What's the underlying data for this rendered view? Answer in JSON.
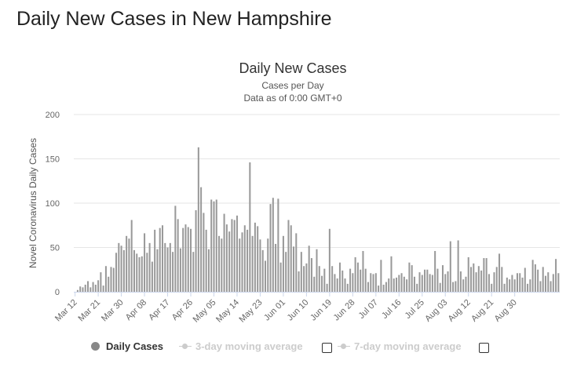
{
  "page": {
    "heading": "Daily New Cases in New Hampshire"
  },
  "chart_data": {
    "type": "bar",
    "title": "Daily New Cases",
    "subtitle_lines": [
      "Cases per Day",
      "Data as of 0:00 GMT+0"
    ],
    "ylabel": "Novel Coronavirus Daily Cases",
    "xlabel": "",
    "ylim": [
      0,
      200
    ],
    "yticks": [
      0,
      50,
      100,
      150,
      200
    ],
    "grid": true,
    "legend_position": "bottom",
    "bar_color": "#999999",
    "tick_labels": [
      {
        "label": "Mar 12",
        "index": 0
      },
      {
        "label": "Mar 21",
        "index": 9
      },
      {
        "label": "Mar 30",
        "index": 18
      },
      {
        "label": "Apr 08",
        "index": 27
      },
      {
        "label": "Apr 17",
        "index": 36
      },
      {
        "label": "Apr 26",
        "index": 45
      },
      {
        "label": "May 05",
        "index": 54
      },
      {
        "label": "May 14",
        "index": 63
      },
      {
        "label": "May 23",
        "index": 72
      },
      {
        "label": "Jun 01",
        "index": 81
      },
      {
        "label": "Jun 10",
        "index": 90
      },
      {
        "label": "Jun 19",
        "index": 99
      },
      {
        "label": "Jun 28",
        "index": 108
      },
      {
        "label": "Jul 07",
        "index": 117
      },
      {
        "label": "Jul 16",
        "index": 126
      },
      {
        "label": "Jul 25",
        "index": 135
      },
      {
        "label": "Aug 03",
        "index": 144
      },
      {
        "label": "Aug 12",
        "index": 153
      },
      {
        "label": "Aug 21",
        "index": 162
      },
      {
        "label": "Aug 30",
        "index": 171
      }
    ],
    "series": [
      {
        "name": "Daily Cases",
        "values": [
          0,
          2,
          6,
          5,
          8,
          12,
          5,
          11,
          8,
          13,
          22,
          7,
          29,
          17,
          28,
          27,
          44,
          55,
          52,
          47,
          63,
          60,
          81,
          47,
          43,
          39,
          40,
          66,
          44,
          55,
          34,
          70,
          48,
          72,
          75,
          55,
          50,
          55,
          45,
          97,
          82,
          49,
          72,
          76,
          73,
          71,
          45,
          92,
          163,
          118,
          89,
          70,
          48,
          104,
          102,
          104,
          63,
          60,
          88,
          76,
          68,
          82,
          81,
          86,
          60,
          67,
          75,
          70,
          146,
          63,
          78,
          74,
          59,
          47,
          35,
          60,
          99,
          106,
          54,
          105,
          33,
          63,
          45,
          81,
          75,
          51,
          66,
          23,
          45,
          29,
          32,
          52,
          38,
          17,
          48,
          29,
          18,
          26,
          9,
          71,
          29,
          20,
          15,
          33,
          24,
          15,
          9,
          26,
          21,
          39,
          33,
          25,
          46,
          26,
          11,
          21,
          20,
          21,
          7,
          36,
          8,
          11,
          15,
          40,
          15,
          16,
          19,
          21,
          17,
          14,
          33,
          30,
          17,
          9,
          22,
          19,
          25,
          25,
          20,
          19,
          46,
          26,
          10,
          30,
          20,
          23,
          57,
          11,
          12,
          58,
          23,
          14,
          17,
          39,
          28,
          32,
          22,
          29,
          24,
          38,
          38,
          20,
          9,
          22,
          28,
          43,
          28,
          9,
          16,
          14,
          19,
          14,
          21,
          21,
          16,
          27,
          9,
          14,
          36,
          31,
          25,
          12,
          28,
          18,
          22,
          12,
          20,
          37,
          21
        ]
      }
    ]
  },
  "legend": {
    "items": [
      {
        "label": "Daily Cases"
      },
      {
        "label": "3-day moving average"
      },
      {
        "label": "7-day moving average"
      }
    ]
  }
}
